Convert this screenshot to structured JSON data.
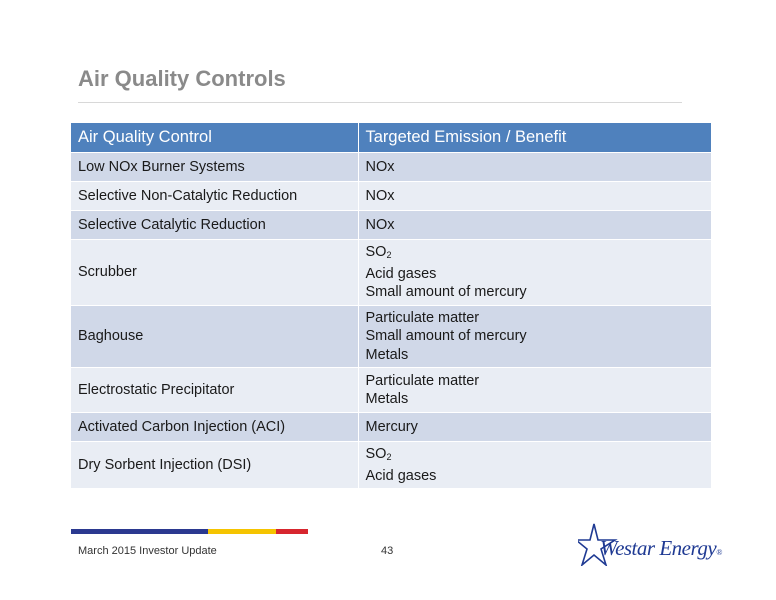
{
  "slide": {
    "title": "Air Quality Controls"
  },
  "table": {
    "headers": [
      "Air Quality Control",
      "Targeted Emission / Benefit"
    ],
    "rows": [
      {
        "control": "Low NOx Burner Systems",
        "benefits": [
          "NOx"
        ]
      },
      {
        "control": "Selective Non-Catalytic Reduction",
        "benefits": [
          "NOx"
        ]
      },
      {
        "control": "Selective Catalytic Reduction",
        "benefits": [
          "NOx"
        ]
      },
      {
        "control": "Scrubber",
        "benefits": [
          "SO",
          "Acid gases",
          "Small amount of mercury"
        ],
        "so2_sub": "2"
      },
      {
        "control": "Baghouse",
        "benefits": [
          "Particulate matter",
          "Small amount of mercury",
          "Metals"
        ]
      },
      {
        "control": "Electrostatic Precipitator",
        "benefits": [
          "Particulate matter",
          "Metals"
        ]
      },
      {
        "control": "Activated Carbon Injection (ACI)",
        "benefits": [
          "Mercury"
        ]
      },
      {
        "control": "Dry Sorbent Injection (DSI)",
        "benefits": [
          "SO",
          "Acid gases"
        ],
        "so2_sub": "2"
      }
    ]
  },
  "footer": {
    "left_text": "March 2015 Investor Update",
    "page_number": "43",
    "logo_text": "Westar Energy",
    "logo_mark": "®"
  },
  "colors": {
    "header_blue": "#4f81bd",
    "row_dark": "#d0d8e8",
    "row_light": "#e9edf4",
    "bar_blue": "#2b3990",
    "bar_yellow": "#f5c400",
    "bar_red": "#d7262e"
  },
  "icons": {
    "logo": "westar-star-logo-icon"
  }
}
